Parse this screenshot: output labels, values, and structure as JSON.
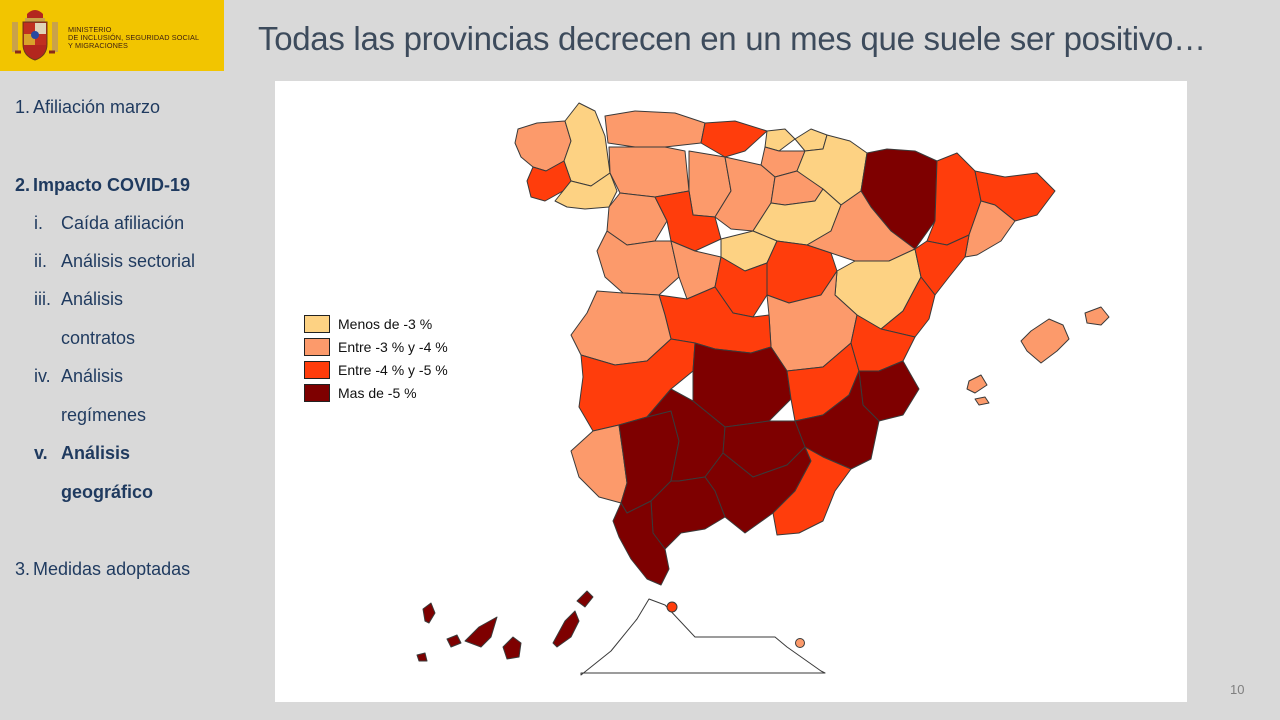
{
  "logo": {
    "line1": "MINISTERIO",
    "line2": "DE INCLUSIÓN, SEGURIDAD SOCIAL",
    "line3": "Y MIGRACIONES"
  },
  "nav": {
    "item1": {
      "num": "1.",
      "label": "Afiliación marzo"
    },
    "item2": {
      "num": "2.",
      "label": "Impacto COVID-19"
    },
    "sub": [
      {
        "num": "i.",
        "label": "Caída afiliación"
      },
      {
        "num": "ii.",
        "label": "Análisis sectorial"
      },
      {
        "num": "iii.",
        "label": "Análisis",
        "label2": "contratos"
      },
      {
        "num": "iv.",
        "label": "Análisis",
        "label2": "regímenes"
      },
      {
        "num": "v.",
        "label": "Análisis",
        "label2": "geográfico"
      }
    ],
    "item3": {
      "num": "3.",
      "label": "Medidas adoptadas"
    }
  },
  "title": "Todas las provincias decrecen en un mes que suele ser positivo…",
  "legend": [
    {
      "label": "Menos de -3 %",
      "color": "#fdd283"
    },
    {
      "label": "Entre -3 % y -4 %",
      "color": "#fc9a6b"
    },
    {
      "label": "Entre -4 % y -5 %",
      "color": "#ff3d0c"
    },
    {
      "label": "Mas de -5 %",
      "color": "#7e0000"
    }
  ],
  "page_number": "10"
}
